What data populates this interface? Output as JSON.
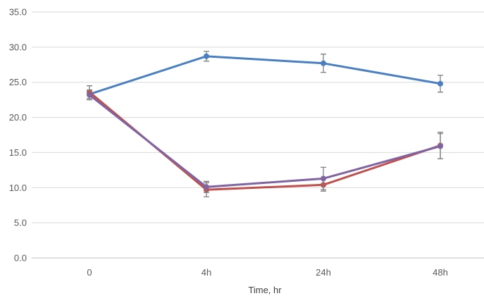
{
  "chart_data": {
    "type": "line",
    "title": "",
    "xlabel": "Time, hr",
    "ylabel": "",
    "categories": [
      "0",
      "4h",
      "24h",
      "48h"
    ],
    "ylim": [
      0,
      35
    ],
    "y_ticks": [
      "0.0",
      "5.0",
      "10.0",
      "15.0",
      "20.0",
      "25.0",
      "30.0",
      "35.0"
    ],
    "grid": true,
    "legend": "none",
    "series": [
      {
        "color": "#4a7fc1",
        "values": [
          23.3,
          28.7,
          27.7,
          24.8
        ],
        "errors": [
          0.6,
          0.7,
          1.3,
          1.2
        ]
      },
      {
        "color": "#c0504d",
        "values": [
          23.6,
          9.7,
          10.4,
          16.0
        ],
        "errors": [
          0.9,
          1.0,
          0.9,
          1.9
        ]
      },
      {
        "color": "#8064a2",
        "values": [
          23.2,
          10.1,
          11.3,
          15.9
        ],
        "errors": [
          0.7,
          0.8,
          1.6,
          1.8
        ]
      }
    ]
  }
}
